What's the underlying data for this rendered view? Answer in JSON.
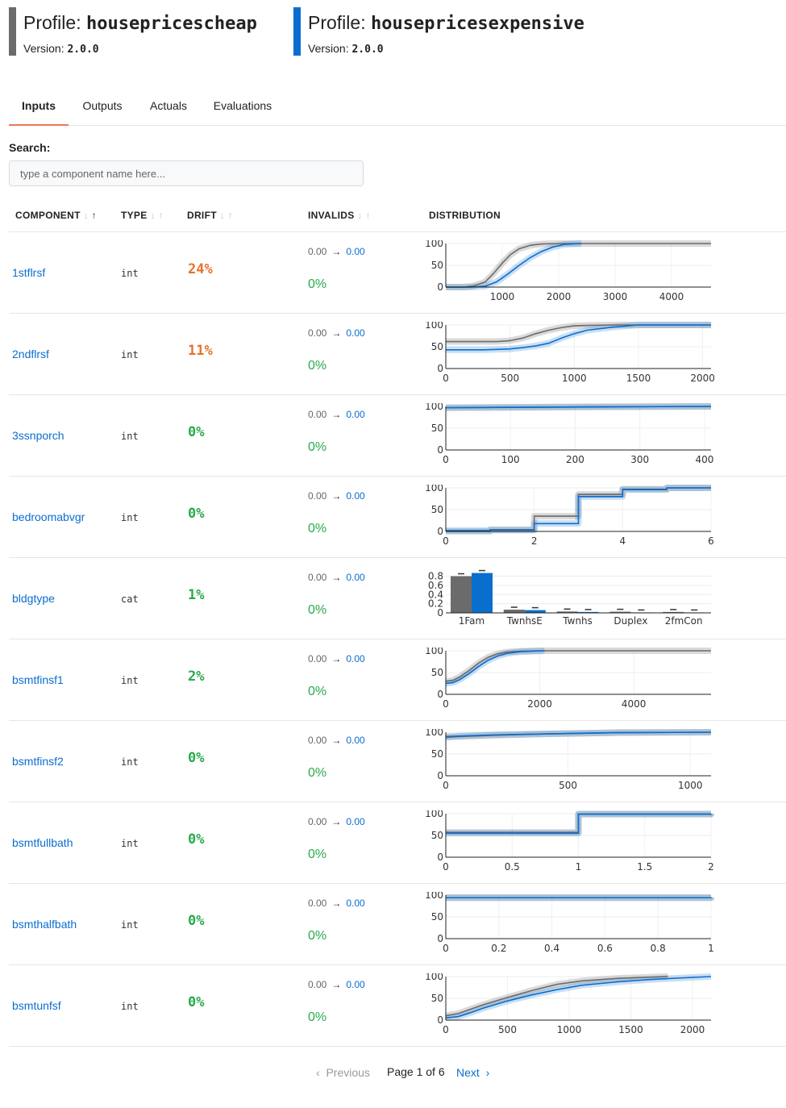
{
  "profiles": [
    {
      "label": "Profile:",
      "name": "housepricescheap",
      "version_label": "Version:",
      "version": "2.0.0",
      "color": "#6b6b6b"
    },
    {
      "label": "Profile:",
      "name": "housepricesexpensive",
      "version_label": "Version:",
      "version": "2.0.0",
      "color": "#0a6ecf"
    }
  ],
  "tabs": [
    {
      "label": "Inputs",
      "active": true
    },
    {
      "label": "Outputs",
      "active": false
    },
    {
      "label": "Actuals",
      "active": false
    },
    {
      "label": "Evaluations",
      "active": false
    }
  ],
  "search": {
    "label": "Search:",
    "placeholder": "type a component name here..."
  },
  "columns": {
    "component": "COMPONENT",
    "type": "TYPE",
    "drift": "DRIFT",
    "invalids": "INVALIDS",
    "distribution": "DISTRIBUTION"
  },
  "colors": {
    "cheap": "#6b6b6b",
    "expensive": "#0a6ecf",
    "drift_high": "#e8712e",
    "drift_low": "#2aa94a",
    "link": "#0a6ecf",
    "active_tab": "#e8795a"
  },
  "rows": [
    {
      "name": "1stflrsf",
      "type": "int",
      "drift": "24%",
      "drift_level": "high",
      "inv_from": "0.00",
      "inv_to": "0.00",
      "inv_pct": "0%",
      "chart_data": {
        "type": "line",
        "kind": "cdf",
        "xlim": [
          0,
          4700
        ],
        "ylim": [
          0,
          100
        ],
        "yticks": [
          0,
          50,
          100
        ],
        "xticks": [
          1000,
          2000,
          3000,
          4000
        ],
        "ytick_labels": [
          "0",
          "50",
          "100"
        ],
        "series": [
          {
            "x": [
              0,
              334,
              500,
              700,
              850,
              1000,
              1150,
              1300,
              1500,
              1700,
              2000,
              4700
            ],
            "y": [
              0,
              0,
              3,
              12,
              32,
              55,
              75,
              88,
              96,
              99,
              100,
              100
            ]
          },
          {
            "x": [
              0,
              450,
              700,
              900,
              1100,
              1300,
              1500,
              1700,
              1900,
              2100,
              2400
            ],
            "y": [
              0,
              0,
              2,
              12,
              30,
              50,
              68,
              82,
              92,
              98,
              100
            ]
          }
        ]
      }
    },
    {
      "name": "2ndflrsf",
      "type": "int",
      "drift": "11%",
      "drift_level": "high",
      "inv_from": "0.00",
      "inv_to": "0.00",
      "inv_pct": "0%",
      "chart_data": {
        "type": "line",
        "kind": "cdf",
        "xlim": [
          0,
          2065
        ],
        "ylim": [
          0,
          100
        ],
        "yticks": [
          0,
          50,
          100
        ],
        "xticks": [
          0,
          500,
          1000,
          1500,
          2000
        ],
        "ytick_labels": [
          "0",
          "50",
          "100"
        ],
        "series": [
          {
            "x": [
              0,
              100,
              400,
              500,
              600,
              700,
              800,
              900,
              1000,
              1100,
              1300,
              2065
            ],
            "y": [
              62,
              62,
              62,
              64,
              70,
              80,
              88,
              94,
              98,
              99,
              100,
              100
            ]
          },
          {
            "x": [
              0,
              300,
              500,
              600,
              700,
              800,
              900,
              1000,
              1100,
              1300,
              1500,
              2065
            ],
            "y": [
              43,
              43,
              45,
              48,
              52,
              58,
              70,
              80,
              88,
              95,
              100,
              100
            ]
          }
        ]
      }
    },
    {
      "name": "3ssnporch",
      "type": "int",
      "drift": "0%",
      "drift_level": "low",
      "inv_from": "0.00",
      "inv_to": "0.00",
      "inv_pct": "0%",
      "chart_data": {
        "type": "line",
        "kind": "cdf",
        "xlim": [
          0,
          410
        ],
        "ylim": [
          0,
          100
        ],
        "yticks": [
          0,
          50,
          100
        ],
        "xticks": [
          0,
          100,
          200,
          300,
          400
        ],
        "ytick_labels": [
          "0",
          "50",
          "100"
        ],
        "series": [
          {
            "x": [
              0,
              220,
              410
            ],
            "y": [
              97,
              99,
              100
            ]
          },
          {
            "x": [
              0,
              250,
              410
            ],
            "y": [
              97,
              99,
              100
            ]
          }
        ]
      }
    },
    {
      "name": "bedroomabvgr",
      "type": "int",
      "drift": "0%",
      "drift_level": "low",
      "inv_from": "0.00",
      "inv_to": "0.00",
      "inv_pct": "0%",
      "chart_data": {
        "type": "line",
        "kind": "step",
        "xlim": [
          0,
          6
        ],
        "ylim": [
          0,
          100
        ],
        "yticks": [
          0,
          50,
          100
        ],
        "xticks": [
          0,
          2,
          4,
          6
        ],
        "ytick_labels": [
          "0",
          "50",
          "100"
        ],
        "series": [
          {
            "x": [
              0,
              1,
              2,
              3,
              4,
              5,
              6
            ],
            "y": [
              0,
              4,
              35,
              85,
              97,
              100,
              100
            ]
          },
          {
            "x": [
              0,
              1,
              2,
              3,
              4,
              5,
              6
            ],
            "y": [
              2,
              3,
              18,
              80,
              96,
              100,
              100
            ]
          }
        ]
      }
    },
    {
      "name": "bldgtype",
      "type": "cat",
      "drift": "1%",
      "drift_level": "low",
      "inv_from": "0.00",
      "inv_to": "0.00",
      "inv_pct": "0%",
      "chart_data": {
        "type": "bar",
        "categories": [
          "1Fam",
          "TwnhsE",
          "Twnhs",
          "Duplex",
          "2fmCon"
        ],
        "ylim": [
          0,
          0.95
        ],
        "yticks": [
          0,
          0.2,
          0.4,
          0.6,
          0.8
        ],
        "ytick_labels": [
          "0",
          "0.2",
          "0.4",
          "0.6",
          "0.8"
        ],
        "series": [
          {
            "values": [
              0.8,
              0.07,
              0.03,
              0.025,
              0.02
            ]
          },
          {
            "values": [
              0.87,
              0.06,
              0.02,
              0.01,
              0.01
            ]
          }
        ]
      }
    },
    {
      "name": "bsmtfinsf1",
      "type": "int",
      "drift": "2%",
      "drift_level": "low",
      "inv_from": "0.00",
      "inv_to": "0.00",
      "inv_pct": "0%",
      "chart_data": {
        "type": "line",
        "kind": "cdf",
        "xlim": [
          0,
          5644
        ],
        "ylim": [
          0,
          100
        ],
        "yticks": [
          0,
          50,
          100
        ],
        "xticks": [
          0,
          2000,
          4000
        ],
        "ytick_labels": [
          "0",
          "50",
          "100"
        ],
        "series": [
          {
            "x": [
              0,
              150,
              300,
              500,
              700,
              900,
              1100,
              1300,
              1600,
              2000,
              5644
            ],
            "y": [
              30,
              32,
              40,
              55,
              72,
              85,
              93,
              97,
              99,
              100,
              100
            ]
          },
          {
            "x": [
              0,
              150,
              300,
              500,
              700,
              900,
              1100,
              1300,
              1600,
              2100
            ],
            "y": [
              25,
              27,
              34,
              48,
              64,
              78,
              88,
              94,
              98,
              100
            ]
          }
        ]
      }
    },
    {
      "name": "bsmtfinsf2",
      "type": "int",
      "drift": "0%",
      "drift_level": "low",
      "inv_from": "0.00",
      "inv_to": "0.00",
      "inv_pct": "0%",
      "chart_data": {
        "type": "line",
        "kind": "cdf",
        "xlim": [
          0,
          1085
        ],
        "ylim": [
          0,
          100
        ],
        "yticks": [
          0,
          50,
          100
        ],
        "xticks": [
          0,
          500,
          1000
        ],
        "ytick_labels": [
          "0",
          "50",
          "100"
        ],
        "series": [
          {
            "x": [
              0,
              50,
              200,
              400,
              700,
              1085
            ],
            "y": [
              88,
              90,
              93,
              96,
              99,
              100
            ]
          },
          {
            "x": [
              0,
              50,
              200,
              400,
              700,
              1085
            ],
            "y": [
              90,
              91,
              94,
              96,
              99,
              100
            ]
          }
        ]
      }
    },
    {
      "name": "bsmtfullbath",
      "type": "int",
      "drift": "0%",
      "drift_level": "low",
      "inv_from": "0.00",
      "inv_to": "0.00",
      "inv_pct": "0%",
      "chart_data": {
        "type": "line",
        "kind": "step",
        "xlim": [
          0,
          2
        ],
        "ylim": [
          0,
          100
        ],
        "yticks": [
          0,
          50,
          100
        ],
        "xticks": [
          0,
          0.5,
          1,
          1.5,
          2
        ],
        "ytick_labels": [
          "0",
          "50",
          "100"
        ],
        "series": [
          {
            "x": [
              0,
              1,
              2
            ],
            "y": [
              57,
              99,
              100
            ]
          },
          {
            "x": [
              0,
              1,
              2
            ],
            "y": [
              55,
              99,
              100
            ]
          }
        ]
      }
    },
    {
      "name": "bsmthalfbath",
      "type": "int",
      "drift": "0%",
      "drift_level": "low",
      "inv_from": "0.00",
      "inv_to": "0.00",
      "inv_pct": "0%",
      "chart_data": {
        "type": "line",
        "kind": "step",
        "xlim": [
          0,
          1
        ],
        "ylim": [
          0,
          100
        ],
        "yticks": [
          0,
          50,
          100
        ],
        "xticks": [
          0,
          0.2,
          0.4,
          0.6,
          0.8,
          1
        ],
        "ytick_labels": [
          "0",
          "50",
          "100"
        ],
        "series": [
          {
            "x": [
              0,
              1
            ],
            "y": [
              94,
              95
            ]
          },
          {
            "x": [
              0,
              1
            ],
            "y": [
              94,
              95
            ]
          }
        ]
      }
    },
    {
      "name": "bsmtunfsf",
      "type": "int",
      "drift": "0%",
      "drift_level": "low",
      "inv_from": "0.00",
      "inv_to": "0.00",
      "inv_pct": "0%",
      "chart_data": {
        "type": "line",
        "kind": "cdf",
        "xlim": [
          0,
          2150
        ],
        "ylim": [
          0,
          100
        ],
        "yticks": [
          0,
          50,
          100
        ],
        "xticks": [
          0,
          500,
          1000,
          1500,
          2000
        ],
        "ytick_labels": [
          "0",
          "50",
          "100"
        ],
        "series": [
          {
            "x": [
              0,
              100,
              200,
              300,
              500,
              700,
              900,
              1100,
              1400,
              1800
            ],
            "y": [
              10,
              15,
              25,
              35,
              52,
              68,
              82,
              90,
              96,
              100
            ]
          },
          {
            "x": [
              0,
              100,
              200,
              300,
              500,
              700,
              900,
              1100,
              1400,
              1700,
              2150
            ],
            "y": [
              5,
              8,
              17,
              27,
              44,
              58,
              70,
              80,
              88,
              94,
              100
            ]
          }
        ]
      }
    }
  ],
  "pagination": {
    "prev_label": "Previous",
    "page_text": "Page 1 of 6",
    "next_label": "Next",
    "prev_icon": "chevron-left-icon",
    "next_icon": "chevron-right-icon"
  }
}
